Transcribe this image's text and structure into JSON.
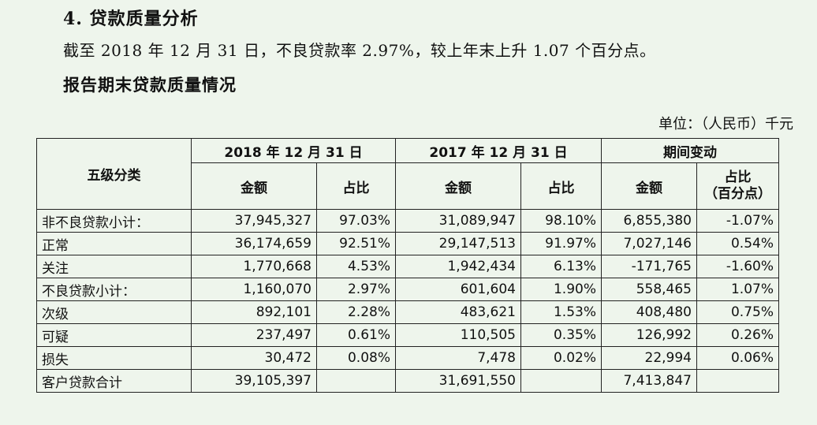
{
  "section": {
    "title": "4. 贷款质量分析",
    "paragraph": "截至 2018 年 12 月 31 日，不良贷款率 2.97%，较上年末上升 1.07 个百分点。",
    "table_title": "报告期末贷款质量情况",
    "unit": "单位：（人民币）千元"
  },
  "table": {
    "header": {
      "category": "五级分类",
      "group_2018": "2018 年 12 月 31 日",
      "group_2017": "2017 年 12 月 31 日",
      "group_change": "期间变动",
      "amount": "金额",
      "ratio": "占比",
      "ratio_pp_line1": "占比",
      "ratio_pp_line2": "（百分点）"
    },
    "rows": [
      {
        "label": "非不良贷款小计：",
        "a2018": "37,945,327",
        "p2018": "97.03%",
        "a2017": "31,089,947",
        "p2017": "98.10%",
        "chg": "6,855,380",
        "chgp": "-1.07%"
      },
      {
        "label": "正常",
        "a2018": "36,174,659",
        "p2018": "92.51%",
        "a2017": "29,147,513",
        "p2017": "91.97%",
        "chg": "7,027,146",
        "chgp": "0.54%"
      },
      {
        "label": "关注",
        "a2018": "1,770,668",
        "p2018": "4.53%",
        "a2017": "1,942,434",
        "p2017": "6.13%",
        "chg": "-171,765",
        "chgp": "-1.60%"
      },
      {
        "label": "不良贷款小计：",
        "a2018": "1,160,070",
        "p2018": "2.97%",
        "a2017": "601,604",
        "p2017": "1.90%",
        "chg": "558,465",
        "chgp": "1.07%"
      },
      {
        "label": "次级",
        "a2018": "892,101",
        "p2018": "2.28%",
        "a2017": "483,621",
        "p2017": "1.53%",
        "chg": "408,480",
        "chgp": "0.75%"
      },
      {
        "label": "可疑",
        "a2018": "237,497",
        "p2018": "0.61%",
        "a2017": "110,505",
        "p2017": "0.35%",
        "chg": "126,992",
        "chgp": "0.26%"
      },
      {
        "label": "损失",
        "a2018": "30,472",
        "p2018": "0.08%",
        "a2017": "7,478",
        "p2017": "0.02%",
        "chg": "22,994",
        "chgp": "0.06%"
      },
      {
        "label": "客户贷款合计",
        "a2018": "39,105,397",
        "p2018": "",
        "a2017": "31,691,550",
        "p2017": "",
        "chg": "7,413,847",
        "chgp": ""
      }
    ]
  }
}
